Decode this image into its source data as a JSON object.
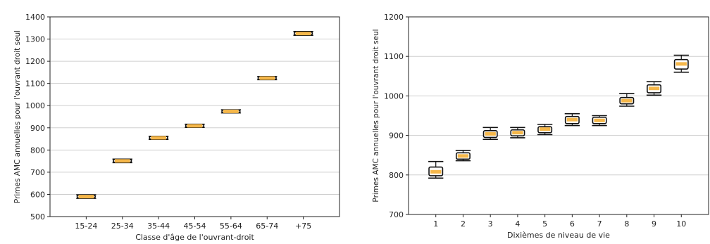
{
  "chart_data": [
    {
      "type": "box",
      "title": "",
      "xlabel": "Classe d'âge de l'ouvrant-droit",
      "ylabel": "Primes AMC annuelles pour l'ouvrant droit seul",
      "categories": [
        "15-24",
        "25-34",
        "35-44",
        "45-54",
        "55-64",
        "65-74",
        "+75"
      ],
      "ylim": [
        500,
        1400
      ],
      "yticks": [
        500,
        600,
        700,
        800,
        900,
        1000,
        1100,
        1200,
        1300,
        1400
      ],
      "grid": true,
      "boxes": [
        {
          "min": 582,
          "q1": 585,
          "median": 590,
          "q3": 595,
          "max": 598
        },
        {
          "min": 743,
          "q1": 746,
          "median": 751,
          "q3": 756,
          "max": 759
        },
        {
          "min": 848,
          "q1": 850,
          "median": 855,
          "q3": 860,
          "max": 862
        },
        {
          "min": 902,
          "q1": 904,
          "median": 909,
          "q3": 914,
          "max": 916
        },
        {
          "min": 967,
          "q1": 969,
          "median": 974,
          "q3": 979,
          "max": 981
        },
        {
          "min": 1117,
          "q1": 1119,
          "median": 1124,
          "q3": 1129,
          "max": 1131
        },
        {
          "min": 1317,
          "q1": 1320,
          "median": 1325,
          "q3": 1331,
          "max": 1334
        }
      ],
      "box_color": "#f5b74a"
    },
    {
      "type": "box",
      "title": "",
      "xlabel": "Dixièmes de niveau de vie",
      "ylabel": "Primes AMC annuelles pour l'ouvrant droit seul",
      "categories": [
        "1",
        "2",
        "3",
        "4",
        "5",
        "6",
        "7",
        "8",
        "9",
        "10"
      ],
      "ylim": [
        700,
        1200
      ],
      "yticks": [
        700,
        800,
        900,
        1000,
        1100,
        1200
      ],
      "grid": true,
      "boxes": [
        {
          "min": 792,
          "q1": 798,
          "median": 808,
          "q3": 820,
          "max": 834
        },
        {
          "min": 836,
          "q1": 840,
          "median": 848,
          "q3": 856,
          "max": 862
        },
        {
          "min": 890,
          "q1": 895,
          "median": 904,
          "q3": 912,
          "max": 920
        },
        {
          "min": 894,
          "q1": 899,
          "median": 907,
          "q3": 914,
          "max": 920
        },
        {
          "min": 902,
          "q1": 907,
          "median": 916,
          "q3": 922,
          "max": 928
        },
        {
          "min": 925,
          "q1": 930,
          "median": 940,
          "q3": 948,
          "max": 955
        },
        {
          "min": 925,
          "q1": 930,
          "median": 938,
          "q3": 946,
          "max": 950
        },
        {
          "min": 974,
          "q1": 980,
          "median": 988,
          "q3": 996,
          "max": 1006
        },
        {
          "min": 1002,
          "q1": 1008,
          "median": 1019,
          "q3": 1028,
          "max": 1036
        },
        {
          "min": 1060,
          "q1": 1068,
          "median": 1081,
          "q3": 1092,
          "max": 1103
        }
      ],
      "box_color": "#f5b74a"
    }
  ]
}
